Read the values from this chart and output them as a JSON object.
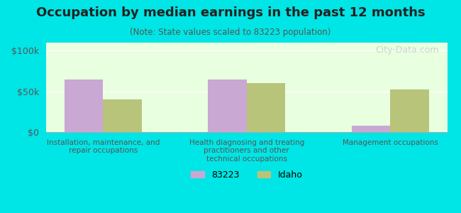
{
  "title": "Occupation by median earnings in the past 12 months",
  "subtitle": "(Note: State values scaled to 83223 population)",
  "categories": [
    "Installation, maintenance, and\nrepair occupations",
    "Health diagnosing and treating\npractitioners and other\ntechnical occupations",
    "Management occupations"
  ],
  "series_83223": [
    65000,
    65000,
    8000
  ],
  "series_idaho": [
    40000,
    60000,
    52000
  ],
  "color_83223": "#c9a8d4",
  "color_idaho": "#b8c47a",
  "ylabel_ticks": [
    0,
    50000,
    100000
  ],
  "ylabel_labels": [
    "$0",
    "$50k",
    "$100k"
  ],
  "ylim": [
    0,
    110000
  ],
  "background_color": "#00e5e5",
  "watermark": "City-Data.com",
  "legend_labels": [
    "83223",
    "Idaho"
  ],
  "bar_width": 0.35
}
